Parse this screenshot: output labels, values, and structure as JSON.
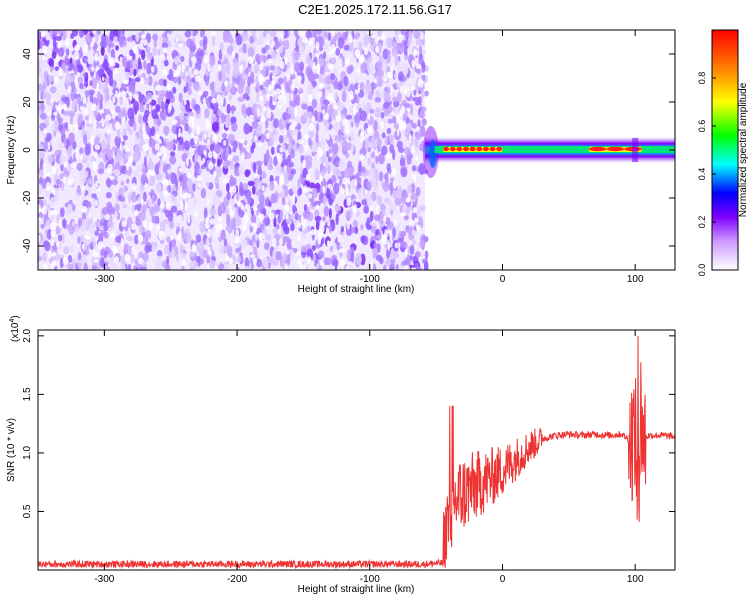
{
  "title": "C2E1.2025.172.11.56.G17",
  "chart_data": [
    {
      "type": "heatmap",
      "xlabel": "Height of straight line (km)",
      "ylabel": "Frequency (Hz)",
      "xlim": [
        -350,
        130
      ],
      "ylim": [
        -50,
        50
      ],
      "xticks": [
        -300,
        -200,
        -100,
        0,
        100
      ],
      "xtick_labels": [
        "-300",
        "-200",
        "-100",
        "0",
        "100"
      ],
      "yticks": [
        -40,
        -20,
        0,
        20,
        40
      ],
      "ytick_labels": [
        "-40",
        "-20",
        "0",
        "20",
        "40"
      ],
      "colorbar": {
        "label": "Normalized spectral amplitude",
        "range": [
          0,
          1
        ],
        "ticks": [
          0,
          0.2,
          0.4,
          0.6,
          0.8
        ],
        "tick_labels": [
          "0.0",
          "0.2",
          "0.4",
          "0.6",
          "0.8"
        ],
        "colors": [
          "#ffffff",
          "#cc99ff",
          "#7f00ff",
          "#0000ff",
          "#00ffff",
          "#00ff00",
          "#ffff00",
          "#ff8000",
          "#ff0000"
        ]
      },
      "signal_onset_km": -60,
      "signal_center_hz": 0,
      "strong_segments_km": [
        [
          -45,
          0
        ],
        [
          65,
          105
        ]
      ],
      "grid": false
    },
    {
      "type": "line",
      "xlabel": "Height of straight line (km)",
      "ylabel": "SNR (10 * v/v)",
      "y_multiplier_label": "(x10",
      "y_multiplier_exp": "4",
      "y_multiplier_close": ")",
      "xlim": [
        -350,
        130
      ],
      "ylim": [
        0,
        2.05
      ],
      "xticks": [
        -300,
        -200,
        -100,
        0,
        100
      ],
      "xtick_labels": [
        "-300",
        "-200",
        "-100",
        "0",
        "100"
      ],
      "yticks": [
        0.5,
        1.0,
        1.5,
        2.0
      ],
      "ytick_labels": [
        "0.5",
        "1.0",
        "1.5",
        "2.0"
      ],
      "color": "#ee3333",
      "series": [
        {
          "x": [
            -350,
            -300,
            -250,
            -200,
            -150,
            -100,
            -60,
            -45,
            -40,
            -35,
            -30,
            -20,
            -10,
            0,
            10,
            20,
            30,
            40,
            50,
            60,
            70,
            80,
            90,
            97,
            100,
            102,
            104,
            106,
            110,
            120,
            130
          ],
          "y": [
            0.05,
            0.05,
            0.05,
            0.05,
            0.05,
            0.05,
            0.05,
            0.06,
            0.45,
            0.6,
            0.65,
            0.72,
            0.78,
            0.85,
            0.95,
            1.05,
            1.12,
            1.15,
            1.16,
            1.15,
            1.16,
            1.15,
            1.16,
            1.1,
            1.2,
            0.5,
            1.4,
            1.1,
            1.15,
            1.15,
            1.14
          ]
        }
      ],
      "grid": false
    }
  ]
}
